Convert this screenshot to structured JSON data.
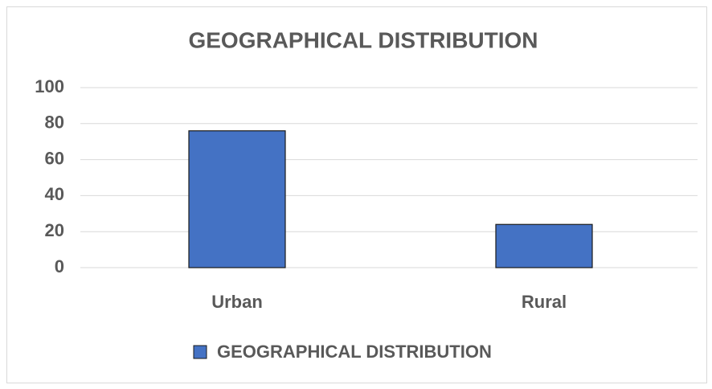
{
  "chart_data": {
    "type": "bar",
    "title": "GEOGRAPHICAL DISTRIBUTION",
    "categories": [
      "Urban",
      "Rural"
    ],
    "series": [
      {
        "name": "GEOGRAPHICAL DISTRIBUTION",
        "color": "#4472c4",
        "values": [
          76,
          24
        ]
      }
    ],
    "ylim": [
      0,
      100
    ],
    "yticks": [
      0,
      20,
      40,
      60,
      80,
      100
    ],
    "grid": true,
    "legend": "bottom"
  }
}
